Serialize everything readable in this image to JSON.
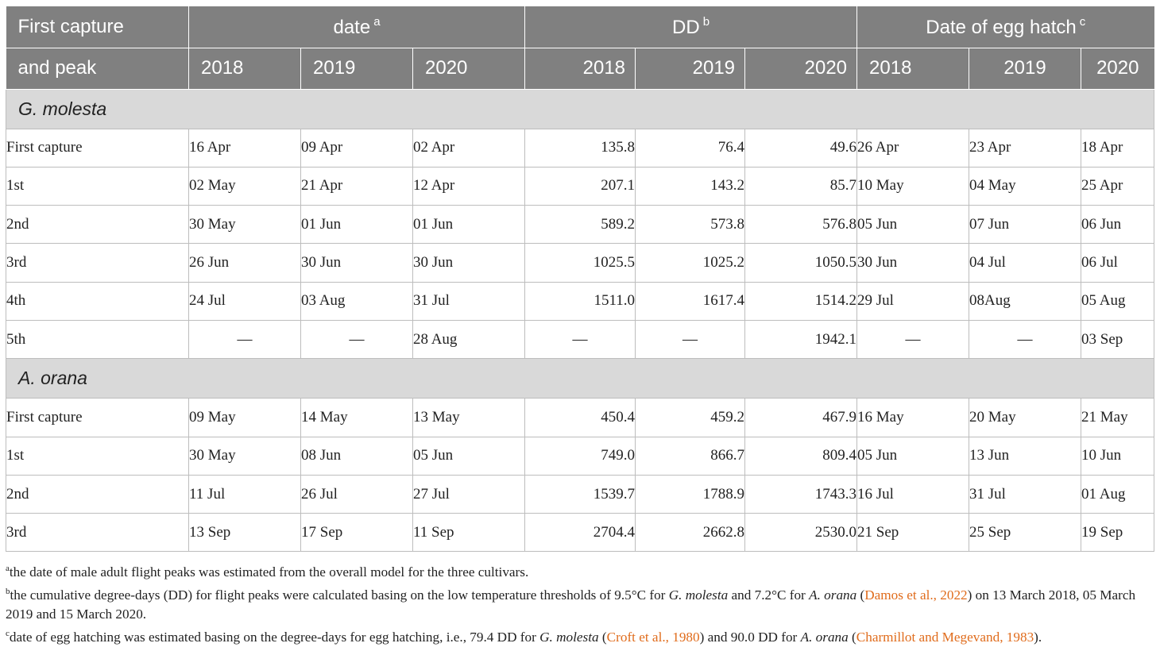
{
  "header": {
    "col0_line1": "First capture",
    "col0_line2": "and peak",
    "groups": [
      {
        "label": "date",
        "sup": "a"
      },
      {
        "label": "DD",
        "sup": "b"
      },
      {
        "label": "Date of egg hatch",
        "sup": "c"
      }
    ],
    "years": [
      "2018",
      "2019",
      "2020"
    ]
  },
  "sections": [
    {
      "species": "G. molesta",
      "rows": [
        {
          "label": "First capture",
          "date": [
            "16 Apr",
            "09 Apr",
            "02 Apr"
          ],
          "dd": [
            "135.8",
            "76.4",
            "49.6"
          ],
          "hatch": [
            "26 Apr",
            "23 Apr",
            "18 Apr"
          ]
        },
        {
          "label": "1st",
          "date": [
            "02 May",
            "21 Apr",
            "12 Apr"
          ],
          "dd": [
            "207.1",
            "143.2",
            "85.7"
          ],
          "hatch": [
            "10 May",
            "04 May",
            "25 Apr"
          ]
        },
        {
          "label": "2nd",
          "date": [
            "30 May",
            "01 Jun",
            "01 Jun"
          ],
          "dd": [
            "589.2",
            "573.8",
            "576.8"
          ],
          "hatch": [
            "05 Jun",
            "07 Jun",
            "06 Jun"
          ]
        },
        {
          "label": "3rd",
          "date": [
            "26 Jun",
            "30 Jun",
            "30 Jun"
          ],
          "dd": [
            "1025.5",
            "1025.2",
            "1050.5"
          ],
          "hatch": [
            "30 Jun",
            "04 Jul",
            "06 Jul"
          ]
        },
        {
          "label": "4th",
          "date": [
            "24 Jul",
            "03 Aug",
            "31 Jul"
          ],
          "dd": [
            "1511.0",
            "1617.4",
            "1514.2"
          ],
          "hatch": [
            "29 Jul",
            "08Aug",
            "05 Aug"
          ]
        },
        {
          "label": "5th",
          "date": [
            "—",
            "—",
            "28 Aug"
          ],
          "dd": [
            "—",
            "—",
            "1942.1"
          ],
          "hatch": [
            "—",
            "—",
            "03 Sep"
          ]
        }
      ]
    },
    {
      "species": "A. orana",
      "rows": [
        {
          "label": "First capture",
          "date": [
            "09 May",
            "14 May",
            "13 May"
          ],
          "dd": [
            "450.4",
            "459.2",
            "467.9"
          ],
          "hatch": [
            "16 May",
            "20 May",
            "21 May"
          ]
        },
        {
          "label": "1st",
          "date": [
            "30 May",
            "08 Jun",
            "05 Jun"
          ],
          "dd": [
            "749.0",
            "866.7",
            "809.4"
          ],
          "hatch": [
            "05 Jun",
            "13 Jun",
            "10 Jun"
          ]
        },
        {
          "label": "2nd",
          "date": [
            "11 Jul",
            "26 Jul",
            "27 Jul"
          ],
          "dd": [
            "1539.7",
            "1788.9",
            "1743.3"
          ],
          "hatch": [
            "16 Jul",
            "31 Jul",
            "01 Aug"
          ]
        },
        {
          "label": "3rd",
          "date": [
            "13 Sep",
            "17 Sep",
            "11 Sep"
          ],
          "dd": [
            "2704.4",
            "2662.8",
            "2530.0"
          ],
          "hatch": [
            "21 Sep",
            "25 Sep",
            "19 Sep"
          ]
        }
      ]
    }
  ],
  "footnotes": {
    "a": {
      "mark": "a",
      "text": "the date of male adult flight peaks was estimated from the overall model for the three cultivars."
    },
    "b": {
      "mark": "b",
      "t1": "the cumulative degree-days (DD) for flight peaks were calculated basing on the low temperature thresholds of 9.5°C for ",
      "sp1": "G. molesta",
      "t2": " and 7.2°C for ",
      "sp2": "A. orana",
      "t3": " (",
      "ref": "Damos et al., 2022",
      "t4": ") on 13 March 2018, 05 March 2019 and 15 March 2020."
    },
    "c": {
      "mark": "c",
      "t1": "date of egg hatching was estimated basing on the degree-days for egg hatching, i.e., 79.4 DD for ",
      "sp1": "G. molesta",
      "t2": " (",
      "ref1": "Croft et al., 1980",
      "t3": ") and 90.0 DD for ",
      "sp2": "A. orana",
      "t4": " (",
      "ref2": "Charmillot and Megevand, 1983",
      "t5": ")."
    }
  },
  "colors": {
    "header_bg": "#808080",
    "section_bg": "#d9d9d9",
    "link": "#e06c1c",
    "border": "#bdbdbd"
  }
}
